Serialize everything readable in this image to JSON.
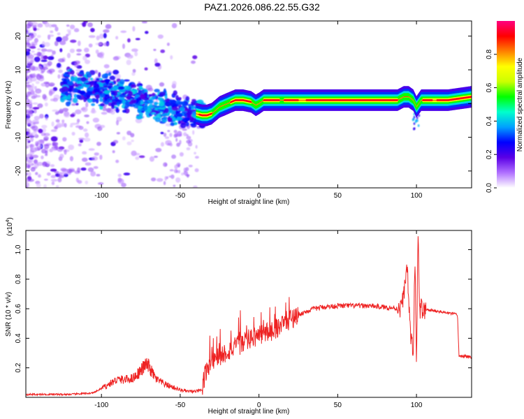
{
  "title": "PAZ1.2026.086.22.55.G32",
  "chart_data": [
    {
      "type": "heatmap",
      "title": "PAZ1.2026.086.22.55.G32",
      "xlabel": "Height of straight line (km)",
      "ylabel": "Frequency (Hz)",
      "xlim": [
        -148,
        135
      ],
      "ylim": [
        -25,
        24.5
      ],
      "x_ticks": [
        -100,
        -50,
        0,
        50,
        100
      ],
      "y_ticks": [
        -20,
        -10,
        0,
        10,
        20
      ],
      "colorbar": {
        "label": "Normalized spectral amplitude",
        "range": [
          0,
          1
        ],
        "ticks": [
          0.0,
          0.2,
          0.4,
          0.6,
          0.8
        ],
        "tick_labels": [
          "0.0",
          "0.2",
          "0.4",
          "0.6",
          "0.8"
        ],
        "colors": [
          "#ffffff",
          "#b070ff",
          "#5a00e6",
          "#0000ff",
          "#00a0ff",
          "#00ffcc",
          "#00ff00",
          "#ccff00",
          "#ffff00",
          "#ff8000",
          "#ff0000",
          "#ff0080"
        ]
      },
      "ridge": {
        "x": [
          -148,
          -120,
          -100,
          -90,
          -80,
          -70,
          -60,
          -50,
          -45,
          -40,
          -36,
          -33,
          -30,
          -25,
          -20,
          -15,
          -10,
          -5,
          -2,
          0,
          3,
          10,
          20,
          40,
          60,
          80,
          88,
          92,
          95,
          98,
          100,
          103,
          110,
          120,
          135
        ],
        "y": [
          4,
          5,
          4,
          3,
          2,
          0,
          -1,
          -2,
          -2.5,
          -3,
          -3.5,
          -3.5,
          -3,
          -1,
          0,
          1,
          1,
          0.5,
          -0.5,
          0,
          1,
          1,
          1,
          1,
          1,
          1,
          1,
          2,
          2,
          1,
          -1,
          1,
          1,
          1,
          2
        ]
      }
    },
    {
      "type": "line",
      "xlabel": "Height of straight line (km)",
      "ylabel": "SNR (10 * v/v)",
      "y_multiplier": "(x10",
      "y_multiplier_exp": "4",
      "y_multiplier_close": ")",
      "xlim": [
        -148,
        135
      ],
      "ylim": [
        0,
        1.13
      ],
      "x_ticks": [
        -100,
        -50,
        0,
        50,
        100
      ],
      "y_ticks": [
        0.2,
        0.4,
        0.6,
        0.8,
        1.0
      ],
      "series": [
        {
          "name": "SNR",
          "color": "#ee2222",
          "x": [
            -148,
            -120,
            -105,
            -100,
            -95,
            -90,
            -85,
            -80,
            -75,
            -72,
            -70,
            -68,
            -65,
            -60,
            -55,
            -50,
            -45,
            -40,
            -36,
            -35,
            -33,
            -30,
            -25,
            -20,
            -15,
            -10,
            -5,
            0,
            5,
            10,
            15,
            20,
            25,
            30,
            35,
            40,
            50,
            60,
            70,
            80,
            90,
            92,
            94,
            96,
            98,
            99,
            100,
            101,
            102,
            103,
            104,
            106,
            110,
            120,
            126,
            127,
            130,
            135
          ],
          "y": [
            0.02,
            0.02,
            0.03,
            0.06,
            0.09,
            0.12,
            0.12,
            0.13,
            0.18,
            0.22,
            0.21,
            0.17,
            0.12,
            0.09,
            0.07,
            0.05,
            0.04,
            0.04,
            0.05,
            0.12,
            0.2,
            0.25,
            0.28,
            0.31,
            0.34,
            0.37,
            0.4,
            0.42,
            0.44,
            0.46,
            0.5,
            0.53,
            0.56,
            0.58,
            0.6,
            0.61,
            0.62,
            0.62,
            0.62,
            0.61,
            0.6,
            0.7,
            0.9,
            0.45,
            0.3,
            0.95,
            0.25,
            1.13,
            0.55,
            0.62,
            0.58,
            0.59,
            0.59,
            0.57,
            0.56,
            0.28,
            0.28,
            0.27
          ]
        }
      ]
    }
  ]
}
